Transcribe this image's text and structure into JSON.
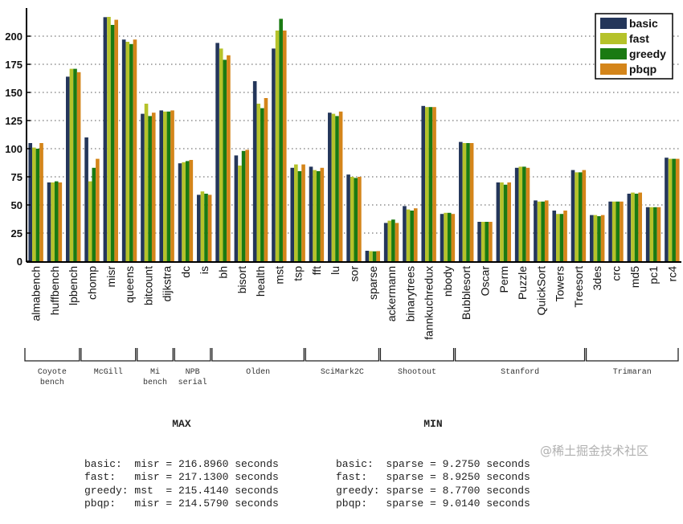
{
  "chart_data": {
    "type": "bar",
    "title": "",
    "xlabel": "",
    "ylabel": "",
    "ylim": [
      0,
      225
    ],
    "yticks": [
      0,
      25,
      50,
      75,
      100,
      125,
      150,
      175,
      200
    ],
    "grid": "horizontal-dotted",
    "legend_position": "top-right",
    "categories": [
      "almabench",
      "huffbench",
      "lpbench",
      "chomp",
      "misr",
      "queens",
      "bitcount",
      "dijkstra",
      "dc",
      "is",
      "bh",
      "bisort",
      "health",
      "mst",
      "tsp",
      "fft",
      "lu",
      "sor",
      "sparse",
      "ackermann",
      "binarytrees",
      "fannkuchredux",
      "nbody",
      "Bubblesort",
      "Oscar",
      "Perm",
      "Puzzle",
      "QuickSort",
      "Towers",
      "Treesort",
      "3des",
      "crc",
      "md5",
      "pc1",
      "rc4"
    ],
    "series": [
      {
        "name": "basic",
        "color": "#24365a",
        "values": [
          105,
          70,
          164,
          110,
          216.896,
          197,
          131,
          134,
          87,
          59,
          194,
          94,
          160,
          189,
          83,
          84,
          132,
          77,
          9.275,
          34,
          49,
          138,
          42,
          106,
          35,
          70,
          83,
          54,
          45,
          81,
          41,
          53,
          60,
          48,
          92
        ]
      },
      {
        "name": "fast",
        "color": "#b5c22a",
        "values": [
          101,
          70,
          171,
          71,
          217.13,
          195,
          140,
          133,
          88,
          62,
          189,
          85,
          140,
          205,
          86,
          81,
          131,
          75,
          8.925,
          36,
          46,
          137,
          43,
          105,
          35,
          70,
          84,
          53,
          42,
          79,
          41,
          53,
          61,
          48,
          91
        ]
      },
      {
        "name": "greedy",
        "color": "#1a7a12",
        "values": [
          100,
          71,
          171,
          83,
          210,
          193,
          129,
          133,
          89,
          60,
          179,
          98,
          136,
          215.414,
          80,
          80,
          129,
          74,
          8.77,
          37,
          45,
          137,
          43,
          105,
          35,
          68,
          84,
          53,
          42,
          79,
          40,
          53,
          60,
          48,
          91
        ]
      },
      {
        "name": "pbqp",
        "color": "#d4851a",
        "values": [
          105,
          70,
          168,
          91,
          214.579,
          197,
          132,
          134,
          90,
          59,
          183,
          99,
          145,
          205,
          86,
          83,
          133,
          75,
          9.014,
          34,
          47,
          137,
          42,
          105,
          35,
          70,
          83,
          54,
          45,
          81,
          41,
          53,
          61,
          48,
          91
        ]
      }
    ],
    "groups": [
      {
        "label": [
          "Coyote",
          "bench"
        ],
        "from": 0,
        "to": 2
      },
      {
        "label": [
          "McGill"
        ],
        "from": 3,
        "to": 5
      },
      {
        "label": [
          "Mi",
          "bench"
        ],
        "from": 6,
        "to": 7
      },
      {
        "label": [
          "NPB",
          "serial"
        ],
        "from": 8,
        "to": 9
      },
      {
        "label": [
          "Olden"
        ],
        "from": 10,
        "to": 14
      },
      {
        "label": [
          "SciMark2C"
        ],
        "from": 15,
        "to": 18
      },
      {
        "label": [
          "Shootout"
        ],
        "from": 19,
        "to": 22
      },
      {
        "label": [
          "Stanford"
        ],
        "from": 23,
        "to": 29
      },
      {
        "label": [
          "Trimaran"
        ],
        "from": 30,
        "to": 34
      }
    ],
    "annotations": {
      "max": {
        "title": "MAX",
        "rows": [
          {
            "series": "basic:",
            "bench": "misr",
            "value": "216.8960",
            "unit": "seconds"
          },
          {
            "series": "fast:",
            "bench": "misr",
            "value": "217.1300",
            "unit": "seconds"
          },
          {
            "series": "greedy:",
            "bench": "mst",
            "value": "215.4140",
            "unit": "seconds"
          },
          {
            "series": "pbqp:",
            "bench": "misr",
            "value": "214.5790",
            "unit": "seconds"
          }
        ]
      },
      "min": {
        "title": "MIN",
        "rows": [
          {
            "series": "basic:",
            "bench": "sparse",
            "value": "9.2750",
            "unit": "seconds"
          },
          {
            "series": "fast:",
            "bench": "sparse",
            "value": "8.9250",
            "unit": "seconds"
          },
          {
            "series": "greedy:",
            "bench": "sparse",
            "value": "8.7700",
            "unit": "seconds"
          },
          {
            "series": "pbqp:",
            "bench": "sparse",
            "value": "9.0140",
            "unit": "seconds"
          }
        ]
      }
    }
  },
  "watermark": "@稀土掘金技术社区"
}
